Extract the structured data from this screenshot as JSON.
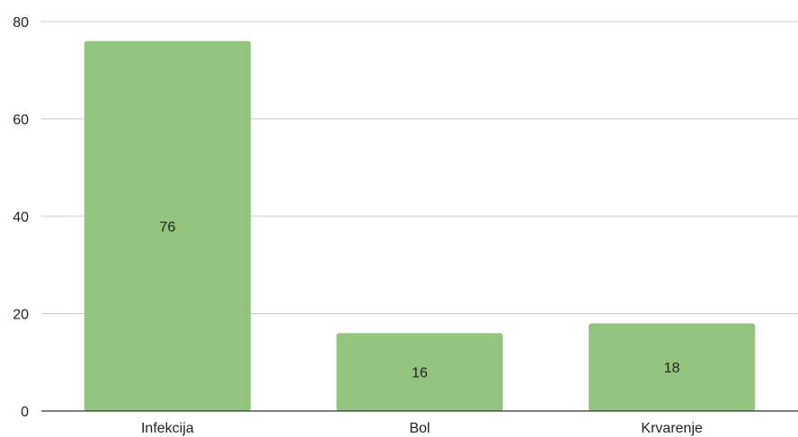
{
  "chart_data": {
    "type": "bar",
    "categories": [
      "Infekcija",
      "Bol",
      "Krvarenje"
    ],
    "values": [
      76,
      16,
      18
    ],
    "data_labels": [
      "76",
      "16",
      "18"
    ],
    "ylim": [
      0,
      80
    ],
    "yticks": [
      0,
      20,
      40,
      60,
      80
    ],
    "ytick_labels": [
      "0",
      "20",
      "40",
      "60",
      "80"
    ],
    "grid": true,
    "legend": "none",
    "bar_color": "#93c47d"
  }
}
